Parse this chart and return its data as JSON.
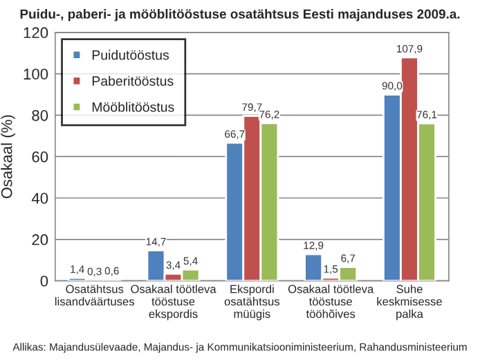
{
  "chart_data": {
    "type": "bar",
    "title": "Puidu-, paberi- ja mööblitööstuse osatähtsus Eesti majanduses 2009.a.",
    "ylabel": "Osakaal (%)",
    "categories": [
      "Osatähtsus\nlisandväärtuses",
      "Osakaal töötleva\ntööstuse\nekspordis",
      "Ekspordi\nosatähtsus\nmüügis",
      "Osakaal töötleva\ntööstuse\ntööhõives",
      "Suhe\nkeskmisesse\npalka"
    ],
    "series": [
      {
        "name": "Puidutööstus",
        "color": "#4f81bd",
        "values": [
          1.4,
          14.7,
          66.7,
          12.9,
          90.0
        ],
        "value_labels": [
          "1,4",
          "14,7",
          "66,7",
          "12,9",
          "90,0"
        ]
      },
      {
        "name": "Paberitööstus",
        "color": "#c0504d",
        "values": [
          0.3,
          3.4,
          79.7,
          1.5,
          107.9
        ],
        "value_labels": [
          "0,3",
          "3,4",
          "79,7",
          "1,5",
          "107,9"
        ]
      },
      {
        "name": "Mööblitööstus",
        "color": "#9bbb59",
        "values": [
          0.6,
          5.4,
          76.2,
          6.7,
          76.1
        ],
        "value_labels": [
          "0,6",
          "5,4",
          "76,2",
          "6,7",
          "76,1"
        ]
      }
    ],
    "ylim": [
      0,
      120
    ],
    "yticks": [
      0,
      20,
      40,
      60,
      80,
      100,
      120
    ],
    "grid": "y",
    "legend": "top left",
    "annotations": [
      "Allikas: Majandusülevaade, Majandus- ja Kommunikatsiooniministeerium, Rahandusministeerium"
    ]
  }
}
